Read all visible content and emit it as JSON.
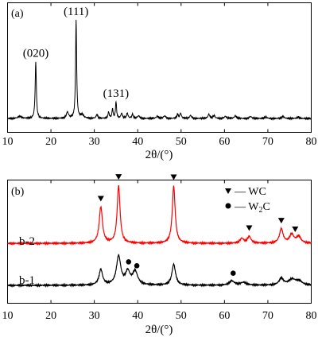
{
  "chart_data": [
    {
      "type": "line",
      "panel_label": "(a)",
      "xlabel": "2θ/(°)",
      "ylabel": "",
      "xlim": [
        10,
        80
      ],
      "xticks": [
        10,
        20,
        30,
        40,
        50,
        60,
        70,
        80
      ],
      "grid": false,
      "annotations": [
        {
          "text": "(020)",
          "x": 16.5
        },
        {
          "text": "(111)",
          "x": 25.8
        },
        {
          "text": "(131)",
          "x": 35.0
        }
      ],
      "series": [
        {
          "color": "#000000",
          "baseline": 0.03,
          "peaks": [
            {
              "x": 12.8,
              "h": 0.02,
              "w": 0.5
            },
            {
              "x": 16.5,
              "h": 0.55,
              "w": 0.16
            },
            {
              "x": 23.8,
              "h": 0.06,
              "w": 0.3
            },
            {
              "x": 25.8,
              "h": 0.95,
              "w": 0.15
            },
            {
              "x": 27.2,
              "h": 0.035,
              "w": 0.4
            },
            {
              "x": 30.6,
              "h": 0.04,
              "w": 0.2
            },
            {
              "x": 33.3,
              "h": 0.06,
              "w": 0.18
            },
            {
              "x": 34.2,
              "h": 0.09,
              "w": 0.16
            },
            {
              "x": 35.0,
              "h": 0.16,
              "w": 0.15
            },
            {
              "x": 36.3,
              "h": 0.05,
              "w": 0.2
            },
            {
              "x": 37.6,
              "h": 0.05,
              "w": 0.2
            },
            {
              "x": 38.8,
              "h": 0.04,
              "w": 0.2
            },
            {
              "x": 40.2,
              "h": 0.025,
              "w": 0.3
            },
            {
              "x": 44.5,
              "h": 0.02,
              "w": 0.3
            },
            {
              "x": 46.2,
              "h": 0.025,
              "w": 0.3
            },
            {
              "x": 49.2,
              "h": 0.04,
              "w": 0.2
            },
            {
              "x": 49.9,
              "h": 0.05,
              "w": 0.2
            },
            {
              "x": 52.2,
              "h": 0.03,
              "w": 0.25
            },
            {
              "x": 56.4,
              "h": 0.04,
              "w": 0.25
            },
            {
              "x": 57.6,
              "h": 0.03,
              "w": 0.25
            },
            {
              "x": 60.2,
              "h": 0.02,
              "w": 0.3
            },
            {
              "x": 62.5,
              "h": 0.025,
              "w": 0.3
            },
            {
              "x": 66.0,
              "h": 0.02,
              "w": 0.3
            },
            {
              "x": 69.5,
              "h": 0.015,
              "w": 0.3
            },
            {
              "x": 73.5,
              "h": 0.02,
              "w": 0.3
            },
            {
              "x": 77.0,
              "h": 0.015,
              "w": 0.3
            }
          ]
        }
      ]
    },
    {
      "type": "line",
      "panel_label": "(b)",
      "xlabel": "2θ/(°)",
      "ylabel": "",
      "xlim": [
        10,
        80
      ],
      "xticks": [
        10,
        20,
        30,
        40,
        50,
        60,
        70,
        80
      ],
      "grid": false,
      "legend": {
        "placement": "top-right",
        "entries": [
          {
            "marker": "triangle-down",
            "text": "— WC"
          },
          {
            "marker": "circle",
            "text_main": "— W",
            "text_sub": "2",
            "text_after": "C"
          }
        ]
      },
      "series": [
        {
          "name": "b-2",
          "color": "#ff0000",
          "offset": 0.5,
          "baseline": 0.04,
          "peaks": [
            {
              "x": 31.5,
              "h": 0.38,
              "w": 0.45
            },
            {
              "x": 35.6,
              "h": 0.6,
              "w": 0.4
            },
            {
              "x": 48.3,
              "h": 0.6,
              "w": 0.4
            },
            {
              "x": 64.0,
              "h": 0.05,
              "w": 0.5
            },
            {
              "x": 65.7,
              "h": 0.07,
              "w": 0.5
            },
            {
              "x": 73.1,
              "h": 0.15,
              "w": 0.5
            },
            {
              "x": 75.5,
              "h": 0.09,
              "w": 0.6
            },
            {
              "x": 77.1,
              "h": 0.07,
              "w": 0.6
            }
          ],
          "markers": [
            {
              "x": 31.5,
              "symbol": "triangle-down"
            },
            {
              "x": 35.6,
              "symbol": "triangle-down"
            },
            {
              "x": 48.3,
              "symbol": "triangle-down"
            },
            {
              "x": 65.7,
              "symbol": "triangle-down"
            },
            {
              "x": 73.1,
              "symbol": "triangle-down"
            },
            {
              "x": 76.3,
              "symbol": "triangle-down"
            }
          ]
        },
        {
          "name": "b-1",
          "color": "#000000",
          "offset": 0.05,
          "baseline": 0.05,
          "peaks": [
            {
              "x": 31.5,
              "h": 0.16,
              "w": 0.5
            },
            {
              "x": 35.6,
              "h": 0.3,
              "w": 0.6
            },
            {
              "x": 37.7,
              "h": 0.13,
              "w": 0.6
            },
            {
              "x": 39.4,
              "h": 0.14,
              "w": 0.7
            },
            {
              "x": 48.3,
              "h": 0.22,
              "w": 0.5
            },
            {
              "x": 61.7,
              "h": 0.045,
              "w": 0.7
            },
            {
              "x": 64.4,
              "h": 0.03,
              "w": 0.8
            },
            {
              "x": 73.1,
              "h": 0.07,
              "w": 0.6
            },
            {
              "x": 75.6,
              "h": 0.06,
              "w": 1.0
            },
            {
              "x": 77.2,
              "h": 0.04,
              "w": 0.8
            }
          ],
          "markers": [
            {
              "x": 37.9,
              "symbol": "circle"
            },
            {
              "x": 39.8,
              "symbol": "circle"
            },
            {
              "x": 62.0,
              "symbol": "circle"
            }
          ]
        }
      ]
    }
  ]
}
